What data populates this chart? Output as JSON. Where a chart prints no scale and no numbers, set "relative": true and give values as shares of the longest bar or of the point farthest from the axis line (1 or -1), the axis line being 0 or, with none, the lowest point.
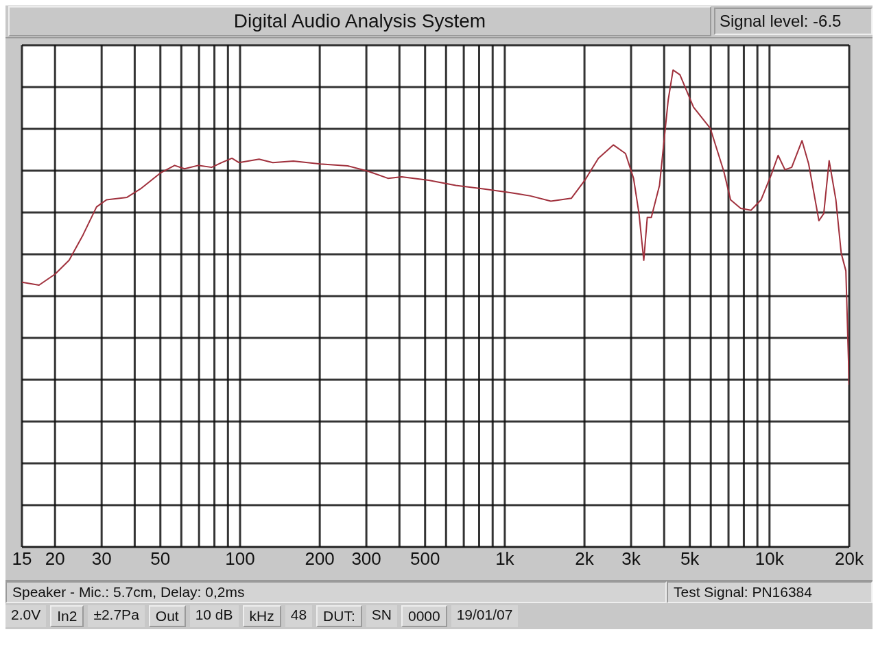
{
  "chart_data": {
    "type": "line",
    "title": "Digital Audio Analysis System",
    "subtitle": "Signal level: -6.5",
    "relative": true,
    "log": "x",
    "grid": true,
    "legend": false,
    "marker": "none",
    "line_style": "solid",
    "xlim": [
      15,
      20000
    ],
    "xticks": [
      15,
      20,
      30,
      {
        "value": 40,
        "label": null
      },
      50,
      {
        "value": 60,
        "label": null
      },
      {
        "value": 70,
        "label": null
      },
      {
        "value": 80,
        "label": null
      },
      {
        "value": 90,
        "label": null
      },
      100,
      200,
      300,
      {
        "value": 400,
        "label": null
      },
      500,
      {
        "value": 600,
        "label": null
      },
      {
        "value": 700,
        "label": null
      },
      {
        "value": 800,
        "label": null
      },
      {
        "value": 900,
        "label": null
      },
      {
        "value": 1000,
        "label": "1k"
      },
      {
        "value": 2000,
        "label": "2k"
      },
      {
        "value": 3000,
        "label": "3k"
      },
      {
        "value": 4000,
        "label": null
      },
      {
        "value": 5000,
        "label": "5k"
      },
      {
        "value": 6000,
        "label": null
      },
      {
        "value": 7000,
        "label": null
      },
      {
        "value": 8000,
        "label": null
      },
      {
        "value": 9000,
        "label": null
      },
      {
        "value": 10000,
        "label": "10k"
      },
      {
        "value": 20000,
        "label": "20k"
      }
    ],
    "x": [
      15,
      17.4,
      20,
      22.6,
      25.5,
      28.7,
      31.3,
      37.4,
      42.1,
      50,
      56.6,
      61.7,
      69.4,
      78.1,
      85.3,
      93.2,
      99,
      118,
      133,
      159,
      201,
      255,
      304,
      362,
      408,
      516,
      653,
      828,
      1047,
      1251,
      1493,
      1784,
      2007,
      2257,
      2571,
      2858,
      3065,
      3214,
      3350,
      3454,
      3577,
      3841,
      4143,
      4322,
      4589,
      5163,
      5972,
      6717,
      7128,
      7786,
      8511,
      9297,
      10160,
      10780,
      11440,
      12130,
      13270,
      14060,
      15370,
      16030,
      16800,
      17810,
      18660,
      19430,
      20000
    ],
    "series": [
      {
        "color": "#a0303c",
        "values": [
          0.555,
          0.549,
          0.572,
          0.601,
          0.654,
          0.713,
          0.728,
          0.733,
          0.751,
          0.784,
          0.8,
          0.793,
          0.8,
          0.796,
          0.806,
          0.815,
          0.806,
          0.813,
          0.806,
          0.809,
          0.803,
          0.799,
          0.788,
          0.773,
          0.776,
          0.769,
          0.758,
          0.751,
          0.743,
          0.736,
          0.725,
          0.731,
          0.769,
          0.815,
          0.843,
          0.825,
          0.773,
          0.699,
          0.601,
          0.691,
          0.691,
          0.758,
          0.937,
          1,
          0.99,
          0.922,
          0.878,
          0.788,
          0.728,
          0.71,
          0.706,
          0.728,
          0.781,
          0.821,
          0.791,
          0.796,
          0.852,
          0.803,
          0.684,
          0.699,
          0.81,
          0.728,
          0.616,
          0.579,
          0.34
        ]
      }
    ],
    "annotations": [
      "Speaker - Mic.: 5.7cm, Delay: 0,2ms",
      "Test Signal: PN16384",
      "2.0V",
      "In2",
      "±2.7Pa",
      "Out",
      "10 dB",
      "kHz",
      "48",
      "DUT:",
      "SN",
      "0000",
      "19/01/07"
    ]
  }
}
